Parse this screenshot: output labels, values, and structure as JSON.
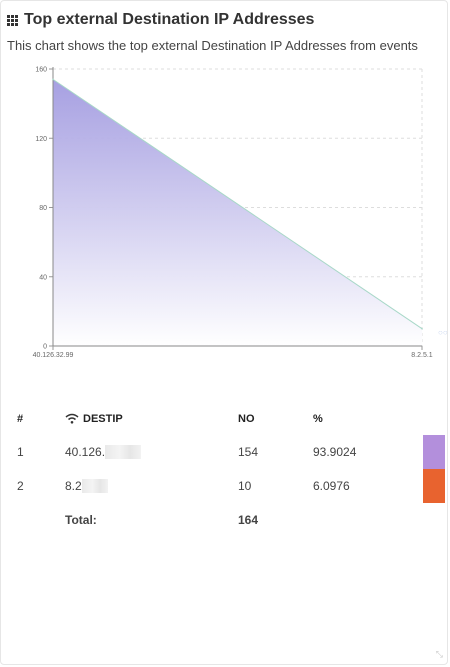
{
  "widget": {
    "title": "Top external Destination IP Addresses",
    "subtitle": "This chart shows the top external Destination IP Addresses from events",
    "title_icon": "grid-icon",
    "corner_icon": "resize-icon"
  },
  "chart_data": {
    "type": "area",
    "x": [
      "40.126.32.99",
      "8.2.5.1"
    ],
    "series": [
      {
        "values": [
          154,
          10
        ]
      }
    ],
    "ylim": [
      0,
      160
    ],
    "yticks": [
      0,
      40,
      80,
      120,
      160
    ],
    "grid": true,
    "colors": {
      "fill_top": "#a29be0",
      "line": "#a8d8c8"
    }
  },
  "table": {
    "headers": {
      "num": "#",
      "destip": "DESTIP",
      "no": "NO",
      "pct": "%"
    },
    "header_icon": "wifi-icon",
    "rows": [
      {
        "num": "1",
        "ip": "40.126.",
        "no": "154",
        "pct": "93.9024",
        "color": "#b38fdc"
      },
      {
        "num": "2",
        "ip": "8.2",
        "no": "10",
        "pct": "6.0976",
        "color": "#e8632f"
      }
    ],
    "total": {
      "label": "Total:",
      "no": "164"
    }
  }
}
